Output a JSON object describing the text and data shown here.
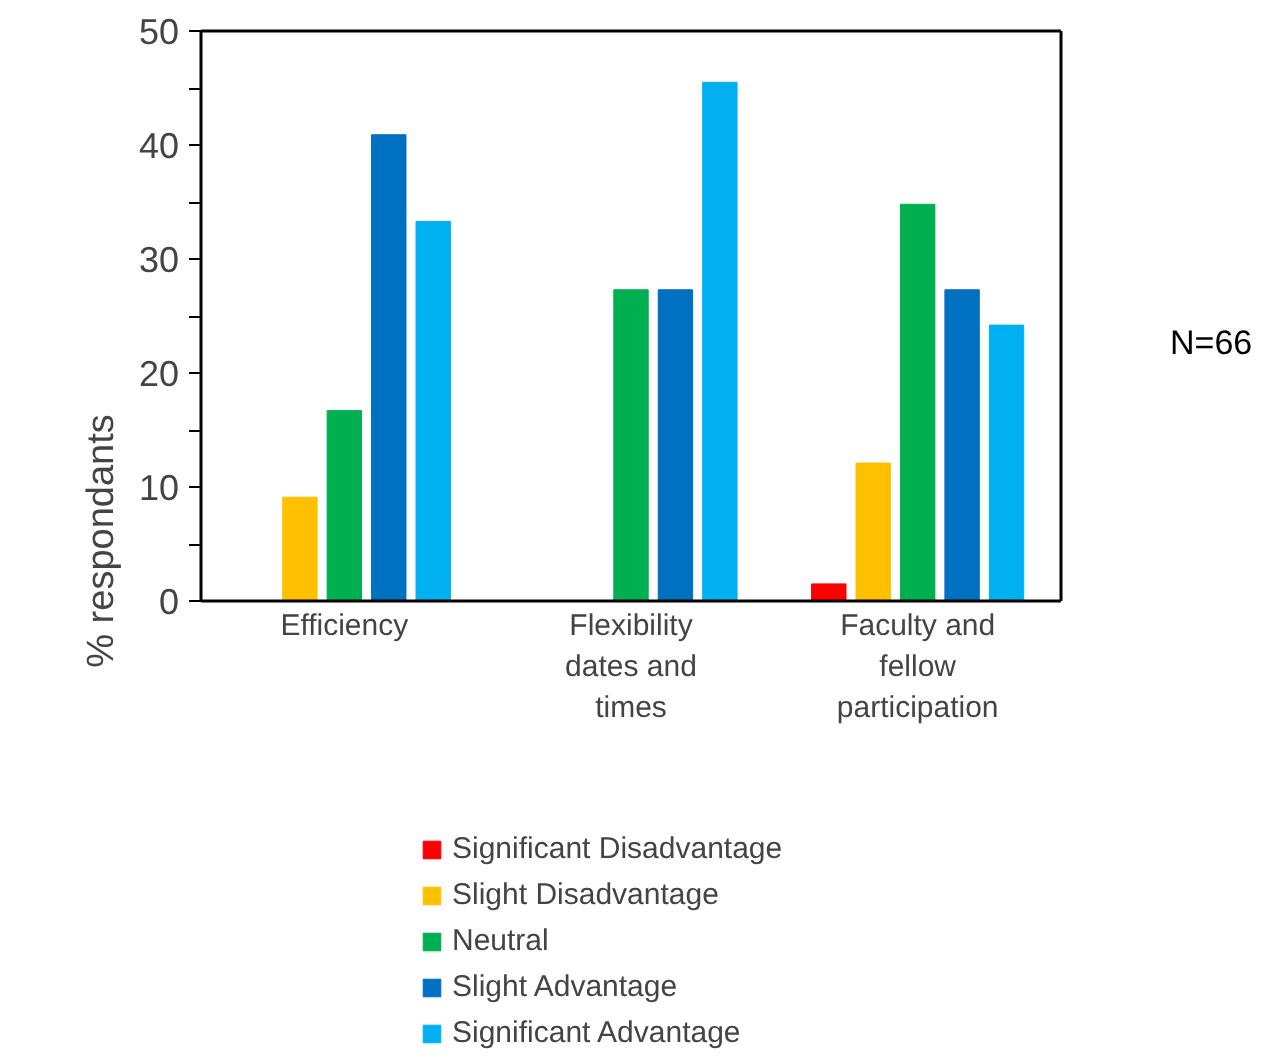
{
  "chart_data": {
    "type": "bar",
    "ylabel": "% respondants",
    "categories": [
      "Efficiency",
      "Flexibility dates and times",
      "Faculty and fellow participation"
    ],
    "series": [
      {
        "name": "Significant Disadvantage",
        "color": "#ff0000",
        "values": [
          0,
          0,
          1.5
        ]
      },
      {
        "name": "Slight Disadvantage",
        "color": "#ffc000",
        "values": [
          9.1,
          0,
          12.1
        ]
      },
      {
        "name": "Neutral",
        "color": "#00b050",
        "values": [
          16.7,
          27.3,
          34.8
        ]
      },
      {
        "name": "Slight Advantage",
        "color": "#0070c0",
        "values": [
          40.9,
          27.3,
          27.3
        ]
      },
      {
        "name": "Significant Advantage",
        "color": "#00b0f0",
        "values": [
          33.3,
          45.5,
          24.2
        ]
      }
    ],
    "ylim": [
      0,
      50
    ],
    "yticks": [
      0,
      {
        "value": 5,
        "label": null
      },
      10,
      {
        "value": 15,
        "label": null
      },
      20,
      {
        "value": 25,
        "label": null
      },
      30,
      {
        "value": 35,
        "label": null
      },
      40,
      {
        "value": 45,
        "label": null
      },
      50
    ],
    "grid": false,
    "legend": "bottom",
    "annotations": [
      "N=66"
    ]
  }
}
